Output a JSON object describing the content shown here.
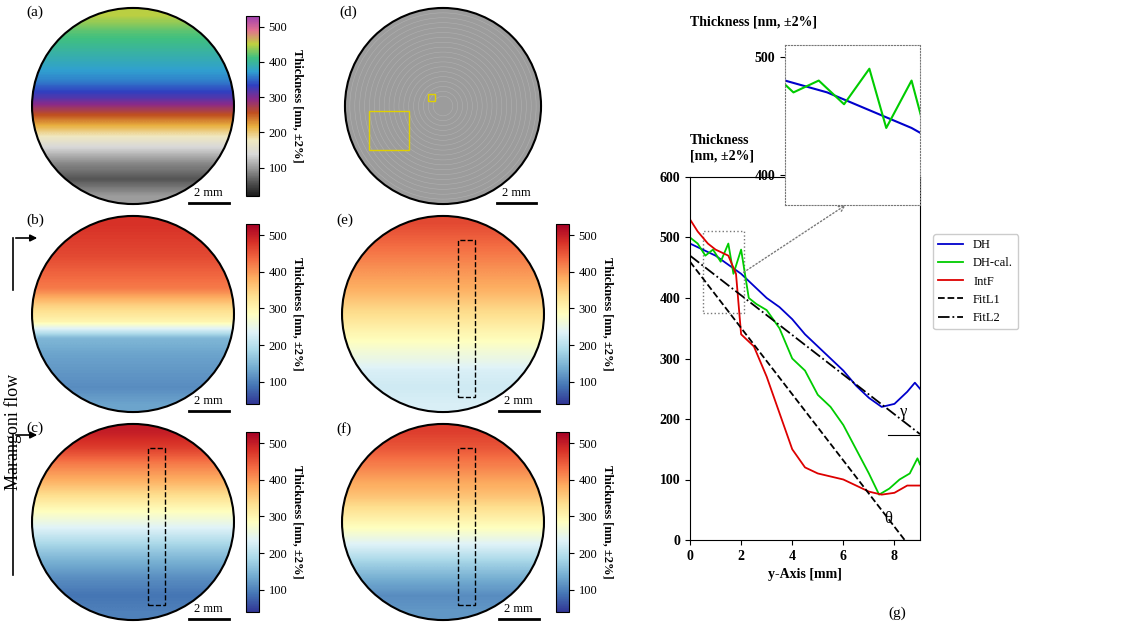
{
  "annotations": [
    "Marangoni flow"
  ],
  "chart_data": [
    {
      "type": "heatmap",
      "title": "(a)",
      "colorbar_label": "Thickness [nm, ±2%]",
      "scale_bar": "2 mm",
      "cells": [
        [
          450
        ],
        [
          420
        ],
        [
          400
        ],
        [
          380
        ],
        [
          360
        ],
        [
          320
        ],
        [
          260
        ],
        [
          200
        ],
        [
          140
        ],
        [
          90
        ],
        [
          60
        ],
        [
          100
        ]
      ],
      "zlim": [
        20,
        530
      ],
      "zticks": [
        100,
        200,
        300,
        400,
        500
      ]
    },
    {
      "type": "heatmap",
      "title": "(b)",
      "colorbar_label": "Thickness [nm, ±2%]",
      "scale_bar": "2 mm",
      "cells": [
        [
          480
        ],
        [
          470
        ],
        [
          460
        ],
        [
          440
        ],
        [
          420
        ],
        [
          350
        ],
        [
          300
        ],
        [
          150
        ],
        [
          130
        ],
        [
          120
        ],
        [
          110
        ],
        [
          130
        ]
      ],
      "zlim": [
        40,
        530
      ],
      "zticks": [
        100,
        200,
        300,
        400,
        500
      ]
    },
    {
      "type": "heatmap",
      "title": "(c)",
      "colorbar_label": "Thickness [nm, ±2%]",
      "scale_bar": "2 mm",
      "cells": [
        [
          500
        ],
        [
          470
        ],
        [
          420
        ],
        [
          380
        ],
        [
          330
        ],
        [
          280
        ],
        [
          230
        ],
        [
          180
        ],
        [
          140
        ],
        [
          110
        ],
        [
          90
        ],
        [
          100
        ]
      ],
      "zlim": [
        40,
        530
      ],
      "zticks": [
        100,
        200,
        300,
        400,
        500
      ]
    },
    {
      "type": "image",
      "title": "(d)",
      "scale_bar": "2 mm"
    },
    {
      "type": "heatmap",
      "title": "(e)",
      "colorbar_label": "Thickness [nm, ±2%]",
      "scale_bar": "2 mm",
      "cells": [
        [
          460
        ],
        [
          440
        ],
        [
          420
        ],
        [
          400
        ],
        [
          380
        ],
        [
          350
        ],
        [
          320
        ],
        [
          290
        ],
        [
          260
        ],
        [
          230
        ],
        [
          220
        ],
        [
          230
        ]
      ],
      "zlim": [
        40,
        530
      ],
      "zticks": [
        100,
        200,
        300,
        400,
        500
      ]
    },
    {
      "type": "heatmap",
      "title": "(f)",
      "colorbar_label": "Thickness [nm, ±2%]",
      "scale_bar": "2 mm",
      "cells": [
        [
          470
        ],
        [
          450
        ],
        [
          420
        ],
        [
          390
        ],
        [
          360
        ],
        [
          320
        ],
        [
          280
        ],
        [
          230
        ],
        [
          180
        ],
        [
          140
        ],
        [
          110
        ],
        [
          120
        ]
      ],
      "zlim": [
        40,
        530
      ],
      "zticks": [
        100,
        200,
        300,
        400,
        500
      ]
    },
    {
      "type": "line",
      "title": "(g)",
      "x_label": "y-Axis [mm]",
      "y_label": "Thickness\n[nm, ±2%]",
      "xlim": [
        0,
        9
      ],
      "ylim": [
        0,
        600
      ],
      "xticks": [
        0,
        2,
        4,
        6,
        8
      ],
      "yticks": [
        0,
        100,
        200,
        300,
        400,
        500,
        600
      ],
      "legend": "upper left",
      "annotations": [
        "γ",
        "θ"
      ],
      "series": [
        {
          "name": "DH",
          "color": "#0000cc",
          "line_style": "solid",
          "x": [
            0,
            0.5,
            1,
            1.5,
            2,
            2.5,
            3,
            3.5,
            4,
            4.5,
            5,
            5.5,
            6,
            6.5,
            7,
            7.5,
            8,
            8.5,
            8.8,
            9
          ],
          "values": [
            490,
            480,
            470,
            455,
            440,
            420,
            400,
            385,
            365,
            340,
            320,
            300,
            280,
            255,
            235,
            220,
            225,
            245,
            260,
            250
          ]
        },
        {
          "name": "DH-cal.",
          "color": "#00cc00",
          "line_style": "solid",
          "x": [
            0,
            0.3,
            0.6,
            0.9,
            1.2,
            1.5,
            1.7,
            2,
            2.3,
            2.6,
            3,
            3.5,
            4,
            4.5,
            5,
            5.5,
            6,
            6.5,
            7,
            7.4,
            7.8,
            8.2,
            8.6,
            8.9,
            9
          ],
          "values": [
            500,
            490,
            470,
            480,
            460,
            490,
            440,
            480,
            400,
            390,
            380,
            350,
            300,
            280,
            240,
            220,
            190,
            150,
            110,
            75,
            85,
            100,
            110,
            135,
            125
          ]
        },
        {
          "name": "IntF",
          "color": "#dd0000",
          "line_style": "solid",
          "x": [
            0,
            0.3,
            0.7,
            1,
            1.5,
            1.8,
            2,
            2.5,
            3,
            3.5,
            4,
            4.5,
            5,
            5.5,
            6,
            6.5,
            7,
            7.5,
            8,
            8.5,
            9
          ],
          "values": [
            530,
            510,
            490,
            480,
            470,
            440,
            340,
            320,
            270,
            210,
            150,
            120,
            110,
            105,
            100,
            90,
            80,
            75,
            78,
            90,
            90
          ]
        },
        {
          "name": "FitL1",
          "color": "#000000",
          "line_style": "dashed",
          "x": [
            0,
            8.4
          ],
          "values": [
            460,
            0
          ]
        },
        {
          "name": "FitL2",
          "color": "#000000",
          "line_style": "dashdot",
          "x": [
            0,
            9
          ],
          "values": [
            470,
            175
          ]
        }
      ],
      "inset": {
        "y_label": "Thickness [nm, ±2%]",
        "xlim": [
          0.5,
          2.1
        ],
        "ylim": [
          375,
          510
        ],
        "yticks": [
          400,
          500
        ],
        "series": [
          "DH",
          "DH-cal."
        ],
        "tick_labels": "y"
      }
    }
  ]
}
